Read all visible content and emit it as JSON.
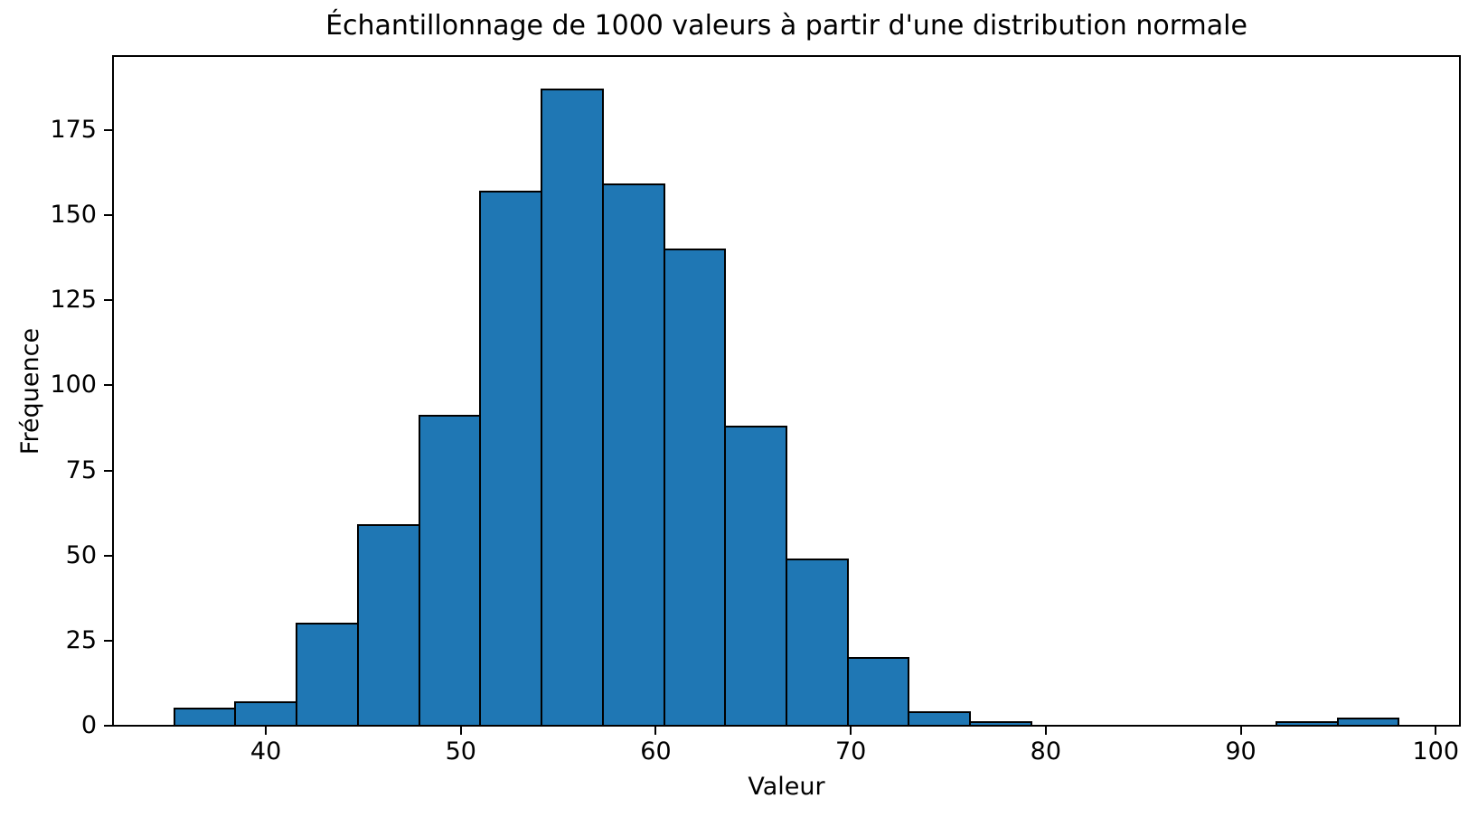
{
  "chart_data": {
    "type": "bar",
    "subtype": "histogram",
    "title": "Échantillonnage de 1000 valeurs à partir d'une distribution normale",
    "xlabel": "Valeur",
    "ylabel": "Fréquence",
    "total_samples": 1000,
    "bin_edges": [
      35.3,
      38.44,
      41.58,
      44.72,
      47.86,
      51.0,
      54.14,
      57.28,
      60.42,
      63.56,
      66.7,
      69.84,
      72.98,
      76.12,
      79.26,
      82.4,
      85.54,
      88.68,
      91.82,
      94.96,
      98.1
    ],
    "counts": [
      5,
      7,
      30,
      59,
      91,
      157,
      187,
      159,
      140,
      88,
      49,
      20,
      4,
      1,
      0,
      0,
      0,
      0,
      1,
      2
    ],
    "x_ticks": [
      40,
      50,
      60,
      70,
      80,
      90,
      100
    ],
    "y_ticks": [
      0,
      25,
      50,
      75,
      100,
      125,
      150,
      175
    ],
    "xlim": [
      32.16,
      101.24
    ],
    "ylim": [
      0,
      196.8
    ],
    "bar_color": "#1f77b4",
    "edge_color": "#000000",
    "grid": "off",
    "legend": "none"
  }
}
